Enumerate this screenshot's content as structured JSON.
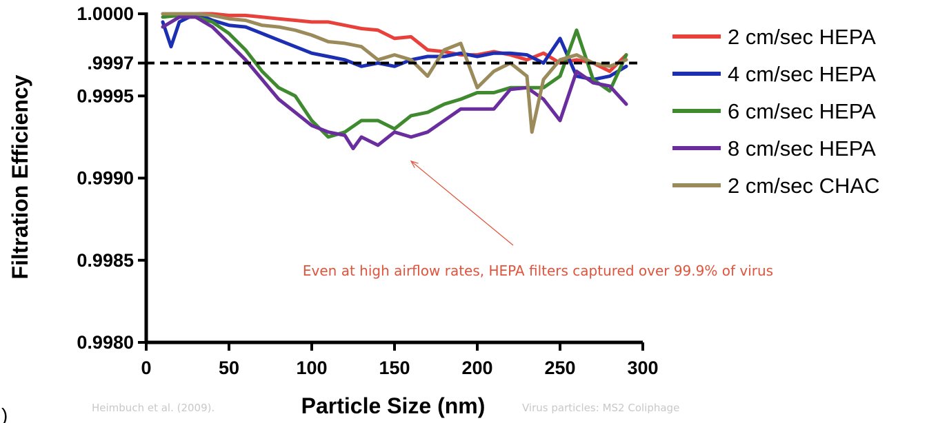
{
  "chart_data": {
    "type": "line",
    "title": "",
    "xlabel": "Particle Size (nm)",
    "ylabel": "Filtration Efficiency",
    "xlim": [
      0,
      300
    ],
    "ylim": [
      0.998,
      1.0
    ],
    "x_ticks": [
      0,
      50,
      100,
      150,
      200,
      250,
      300
    ],
    "x_tick_labels": [
      "0",
      "50",
      "100",
      "150",
      "200",
      "250",
      "300"
    ],
    "y_ticks": [
      0.998,
      0.9985,
      0.999,
      0.9995,
      0.9997,
      1.0
    ],
    "y_tick_labels": [
      "0.9980",
      "0.9985",
      "0.9990",
      "0.9995",
      ".9997",
      "1.0000"
    ],
    "grid": false,
    "legend_position": "right",
    "reference_line": {
      "y": 0.9997,
      "style": "dashed",
      "color": "#000000"
    },
    "series": [
      {
        "name": "2 cm/sec HEPA",
        "color": "#e8413c",
        "x": [
          10,
          20,
          30,
          40,
          50,
          60,
          70,
          80,
          90,
          100,
          110,
          120,
          130,
          140,
          150,
          160,
          170,
          180,
          190,
          200,
          210,
          220,
          230,
          240,
          250,
          260,
          270,
          280,
          290
        ],
        "y": [
          1.0,
          1.0,
          1.0,
          1.0,
          0.99999,
          0.99999,
          0.99998,
          0.99997,
          0.99996,
          0.99995,
          0.99995,
          0.99993,
          0.99991,
          0.9999,
          0.99985,
          0.99986,
          0.99978,
          0.99977,
          0.99975,
          0.99975,
          0.99977,
          0.99975,
          0.99972,
          0.99976,
          0.9997,
          0.99972,
          0.9997,
          0.99965,
          0.99975
        ]
      },
      {
        "name": "4 cm/sec HEPA",
        "color": "#1c2fb2",
        "x": [
          10,
          15,
          20,
          30,
          40,
          50,
          60,
          70,
          80,
          90,
          100,
          110,
          120,
          130,
          140,
          150,
          160,
          170,
          180,
          190,
          200,
          210,
          220,
          230,
          240,
          250,
          260,
          270,
          280,
          290
        ],
        "y": [
          0.99995,
          0.9998,
          0.99995,
          1.0,
          0.99996,
          0.99993,
          0.99992,
          0.99988,
          0.99984,
          0.9998,
          0.99976,
          0.99974,
          0.99972,
          0.99968,
          0.9997,
          0.99968,
          0.99972,
          0.99974,
          0.99974,
          0.99976,
          0.99974,
          0.99976,
          0.99976,
          0.99975,
          0.9997,
          0.99985,
          0.99962,
          0.9996,
          0.99962,
          0.99968
        ]
      },
      {
        "name": "6 cm/sec HEPA",
        "color": "#3f8a2f",
        "x": [
          10,
          20,
          30,
          40,
          50,
          60,
          70,
          80,
          90,
          100,
          110,
          120,
          130,
          140,
          150,
          160,
          170,
          180,
          190,
          200,
          210,
          220,
          230,
          240,
          250,
          260,
          270,
          280,
          290
        ],
        "y": [
          0.99998,
          0.99999,
          0.99998,
          0.99995,
          0.99988,
          0.99978,
          0.99965,
          0.99955,
          0.9995,
          0.99935,
          0.99925,
          0.99928,
          0.99935,
          0.99935,
          0.9993,
          0.99938,
          0.9994,
          0.99945,
          0.99948,
          0.99952,
          0.99952,
          0.99955,
          0.99955,
          0.99955,
          0.99962,
          0.9999,
          0.9996,
          0.99953,
          0.99975
        ]
      },
      {
        "name": "8 cm/sec HEPA",
        "color": "#6a2d9e",
        "x": [
          10,
          20,
          30,
          40,
          50,
          60,
          70,
          80,
          90,
          100,
          110,
          120,
          125,
          130,
          140,
          150,
          160,
          170,
          180,
          190,
          200,
          210,
          220,
          230,
          240,
          250,
          260,
          270,
          280,
          290
        ],
        "y": [
          0.99992,
          0.99998,
          0.99998,
          0.99992,
          0.99982,
          0.99972,
          0.9996,
          0.99948,
          0.9994,
          0.99932,
          0.99928,
          0.99926,
          0.99918,
          0.99925,
          0.9992,
          0.99928,
          0.99925,
          0.99928,
          0.99935,
          0.99942,
          0.99942,
          0.99942,
          0.99954,
          0.99955,
          0.99948,
          0.99935,
          0.99965,
          0.99958,
          0.99956,
          0.99945
        ]
      },
      {
        "name": "2 cm/sec CHAC",
        "color": "#9b8a5a",
        "x": [
          10,
          20,
          30,
          40,
          50,
          60,
          70,
          80,
          90,
          100,
          110,
          120,
          130,
          140,
          150,
          160,
          170,
          180,
          190,
          200,
          210,
          220,
          230,
          233,
          240,
          250,
          260,
          270,
          280,
          290
        ],
        "y": [
          1.0,
          1.0,
          1.0,
          0.99999,
          0.99997,
          0.99996,
          0.99993,
          0.99992,
          0.9999,
          0.99987,
          0.99983,
          0.99982,
          0.9998,
          0.99972,
          0.99975,
          0.99972,
          0.99962,
          0.99978,
          0.99982,
          0.99955,
          0.99965,
          0.9997,
          0.99962,
          0.99928,
          0.9996,
          0.99972,
          0.99975,
          0.9997,
          0.99968,
          0.99972
        ]
      }
    ],
    "annotation": {
      "text": "Even at high airflow rates, HEPA filters captured over 99.9% of virus",
      "color": "#e0533c",
      "arrow_target": {
        "x": 160,
        "y": 0.99912
      }
    }
  },
  "credits": {
    "left": "Heimbuch et al. (2009).",
    "right": "Virus particles: MS2 Coliphage"
  },
  "edge_glyph": ")"
}
